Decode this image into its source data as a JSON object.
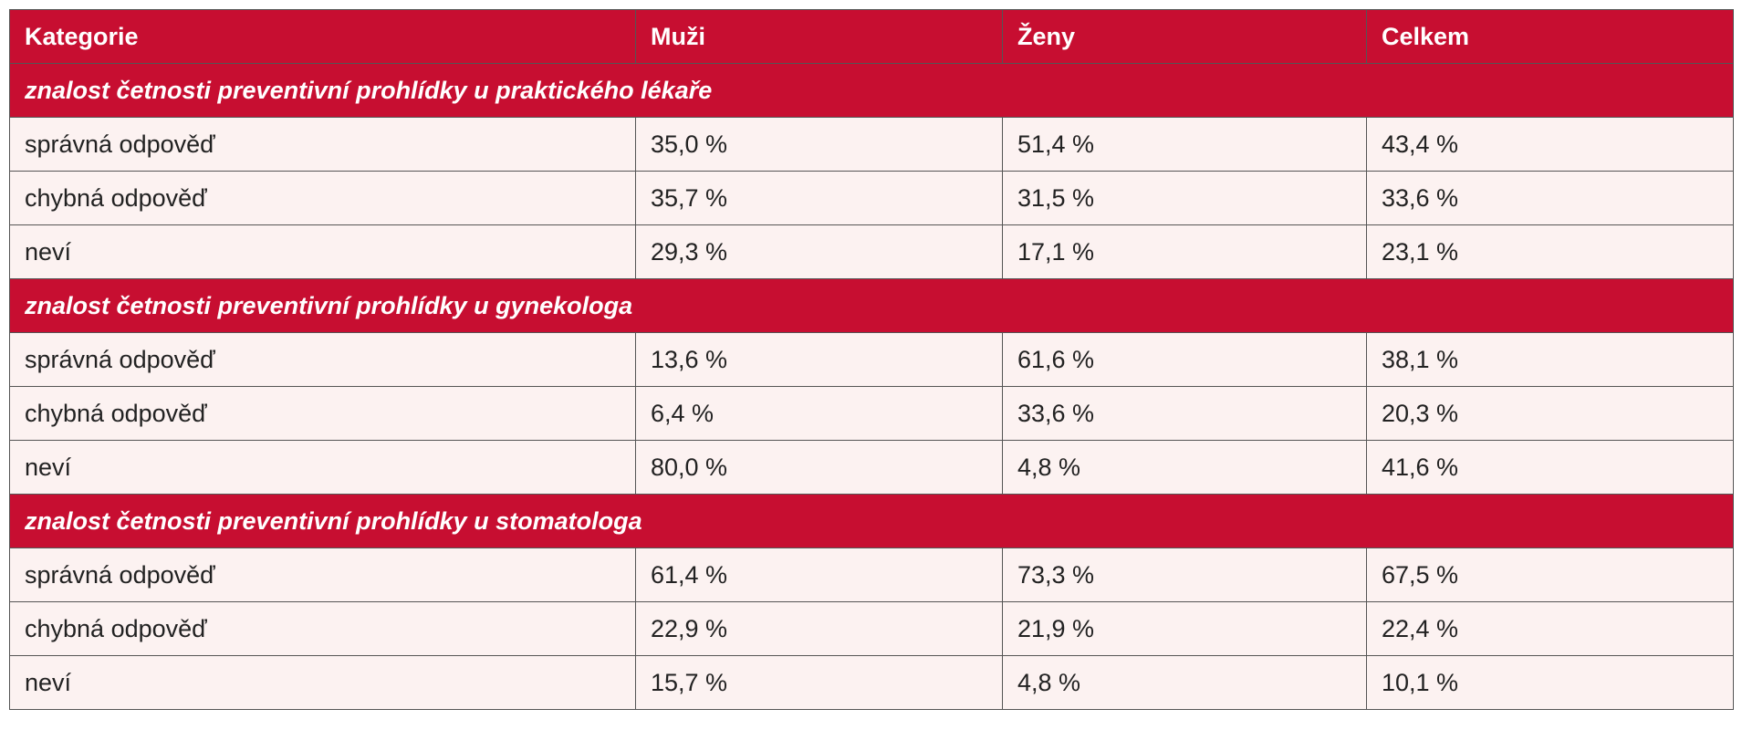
{
  "table": {
    "header": [
      "Kategorie",
      "Muži",
      "Ženy",
      "Celkem"
    ],
    "sections": [
      {
        "title": "znalost četnosti preventivní prohlídky u praktického lékaře",
        "rows": [
          [
            "správná odpověď",
            "35,0 %",
            "51,4 %",
            "43,4 %"
          ],
          [
            "chybná odpověď",
            "35,7 %",
            "31,5 %",
            "33,6 %"
          ],
          [
            "neví",
            "29,3 %",
            "17,1 %",
            "23,1 %"
          ]
        ]
      },
      {
        "title": "znalost četnosti preventivní prohlídky u gynekologa",
        "rows": [
          [
            "správná odpověď",
            "13,6 %",
            "61,6 %",
            "38,1 %"
          ],
          [
            "chybná odpověď",
            "6,4 %",
            "33,6 %",
            "20,3 %"
          ],
          [
            "neví",
            "80,0 %",
            "4,8 %",
            "41,6 %"
          ]
        ]
      },
      {
        "title": "znalost četnosti preventivní prohlídky u stomatologa",
        "rows": [
          [
            "správná odpověď",
            "61,4 %",
            "73,3 %",
            "67,5 %"
          ],
          [
            "chybná odpověď",
            "22,9 %",
            "21,9 %",
            "22,4 %"
          ],
          [
            "neví",
            "15,7 %",
            "4,8 %",
            "10,1 %"
          ]
        ]
      }
    ]
  }
}
